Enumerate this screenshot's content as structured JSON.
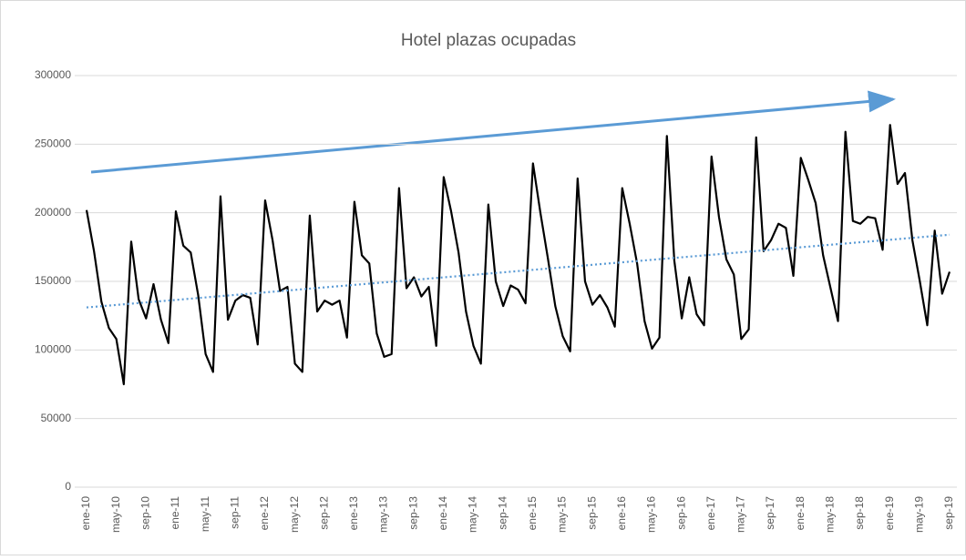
{
  "chart_data": {
    "type": "line",
    "title": "Hotel plazas ocupadas",
    "categories": [
      "ene-10",
      null,
      null,
      null,
      "may-10",
      null,
      null,
      null,
      "sep-10",
      null,
      null,
      null,
      "ene-11",
      null,
      null,
      null,
      "may-11",
      null,
      null,
      null,
      "sep-11",
      null,
      null,
      null,
      "ene-12",
      null,
      null,
      null,
      "may-12",
      null,
      null,
      null,
      "sep-12",
      null,
      null,
      null,
      "ene-13",
      null,
      null,
      null,
      "may-13",
      null,
      null,
      null,
      "sep-13",
      null,
      null,
      null,
      "ene-14",
      null,
      null,
      null,
      "may-14",
      null,
      null,
      null,
      "sep-14",
      null,
      null,
      null,
      "ene-15",
      null,
      null,
      null,
      "may-15",
      null,
      null,
      null,
      "sep-15",
      null,
      null,
      null,
      "ene-16",
      null,
      null,
      null,
      "may-16",
      null,
      null,
      null,
      "sep-16",
      null,
      null,
      null,
      "ene-17",
      null,
      null,
      null,
      "may-17",
      null,
      null,
      null,
      "sep-17",
      null,
      null,
      null,
      "ene-18",
      null,
      null,
      null,
      "may-18",
      null,
      null,
      null,
      "sep-18",
      null,
      null,
      null,
      "ene-19",
      null,
      null,
      null,
      "may-19",
      null,
      null,
      null,
      "sep-19"
    ],
    "series": [
      {
        "color": "#000000",
        "values": [
          202000,
          172000,
          135000,
          116000,
          108000,
          75000,
          179000,
          137000,
          123000,
          148000,
          122000,
          105000,
          201000,
          176000,
          171000,
          140000,
          97000,
          84000,
          212000,
          122000,
          136000,
          140000,
          138000,
          104000,
          209000,
          180000,
          143000,
          146000,
          90000,
          84000,
          198000,
          128000,
          136000,
          133000,
          136000,
          109000,
          208000,
          169000,
          163000,
          112000,
          95000,
          97000,
          218000,
          145000,
          153000,
          139000,
          146000,
          103000,
          226000,
          201000,
          171000,
          128000,
          103000,
          90000,
          206000,
          150000,
          132000,
          147000,
          144000,
          134000,
          236000,
          200000,
          167000,
          132000,
          110000,
          99000,
          225000,
          150000,
          133000,
          140000,
          131000,
          117000,
          218000,
          192000,
          163000,
          121000,
          101000,
          109000,
          256000,
          165000,
          123000,
          153000,
          126000,
          118000,
          241000,
          197000,
          166000,
          155000,
          108000,
          115000,
          255000,
          172000,
          180000,
          192000,
          189000,
          154000,
          240000,
          224000,
          207000,
          169000,
          145000,
          121000,
          259000,
          194000,
          192000,
          197000,
          196000,
          173000,
          264000,
          221000,
          229000,
          180000,
          150000,
          118000,
          187000,
          141000,
          157000
        ]
      }
    ],
    "trend": {
      "color": "#5b9bd5",
      "values": [
        131000,
        184000
      ]
    },
    "ylim": [
      0,
      300000
    ],
    "yticks": [
      0,
      50000,
      100000,
      150000,
      200000,
      250000,
      300000
    ],
    "grid": true
  }
}
